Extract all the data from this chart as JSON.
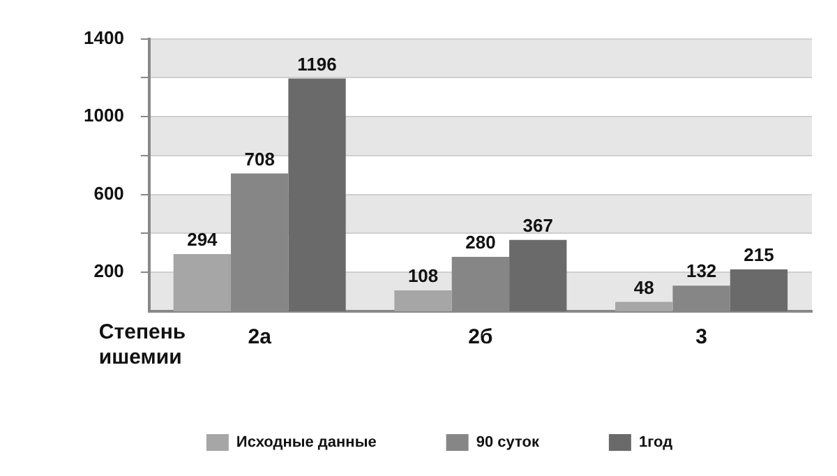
{
  "chart_data": {
    "type": "bar",
    "xlabel": "Степень ишемии",
    "categories": [
      "2а",
      "2б",
      "3"
    ],
    "series": [
      {
        "name": "Исходные данные",
        "color": "#a6a6a6",
        "values": [
          294,
          108,
          48
        ]
      },
      {
        "name": "90 суток",
        "color": "#868686",
        "values": [
          708,
          280,
          132
        ]
      },
      {
        "name": "1год",
        "color": "#6a6a6a",
        "values": [
          1196,
          367,
          215
        ]
      }
    ],
    "ylim": [
      0,
      1400
    ],
    "yticks": [
      200,
      {
        "value": 400,
        "label": null
      },
      600,
      {
        "value": 800,
        "label": null
      },
      1000,
      {
        "value": 1200,
        "label": null
      },
      1400
    ],
    "grid": "y",
    "legend": "bottom",
    "data_labels": true
  }
}
